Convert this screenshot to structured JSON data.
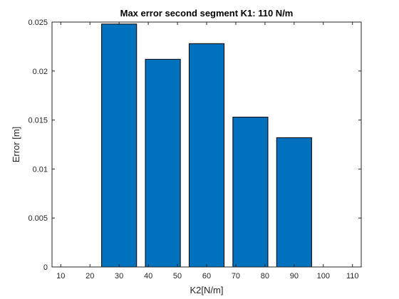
{
  "chart_data": {
    "type": "bar",
    "title": "Max error second segment K1: 110 N/m",
    "xlabel": "K2[N/m]",
    "ylabel": "Error [m]",
    "x": [
      30,
      45,
      60,
      75,
      90
    ],
    "values": [
      0.0248,
      0.0212,
      0.0228,
      0.0153,
      0.0132
    ],
    "xlim": [
      7,
      113
    ],
    "ylim": [
      0,
      0.025
    ],
    "xticks": [
      10,
      20,
      30,
      40,
      50,
      60,
      70,
      80,
      90,
      100,
      110
    ],
    "yticks": [
      0,
      0.005,
      0.01,
      0.015,
      0.02,
      0.025
    ],
    "ytick_labels": [
      "0",
      "0.005",
      "0.01",
      "0.015",
      "0.02",
      "0.025"
    ],
    "bar_color": "#0072bd",
    "grid": false,
    "legend": "none"
  }
}
